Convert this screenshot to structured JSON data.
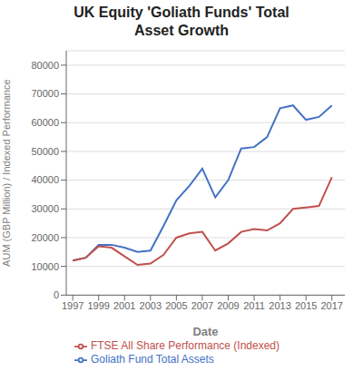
{
  "chart_data": {
    "type": "line",
    "title": "UK Equity 'Goliath Funds' Total\nAsset Growth",
    "xlabel": "Date",
    "ylabel": "AUM (GBP Million) / Indexed Performance",
    "x": [
      1997,
      1998,
      1999,
      2000,
      2001,
      2002,
      2003,
      2004,
      2005,
      2006,
      2007,
      2008,
      2009,
      2010,
      2011,
      2012,
      2013,
      2014,
      2015,
      2016,
      2017
    ],
    "series": [
      {
        "name": "Goliath Fund Total Assets",
        "color": "#4472C4",
        "values": [
          12000,
          13000,
          17500,
          17500,
          16500,
          15000,
          15500,
          24000,
          33000,
          38000,
          44000,
          34000,
          40000,
          51000,
          51500,
          55000,
          65000,
          66000,
          61000,
          62000,
          66000
        ]
      },
      {
        "name": "FTSE All Share Performance (Indexed)",
        "color": "#C0504D",
        "values": [
          12000,
          13000,
          17000,
          16500,
          13500,
          10500,
          11000,
          14000,
          20000,
          21500,
          22000,
          15500,
          18000,
          22000,
          23000,
          22500,
          25000,
          30000,
          30500,
          31000,
          41000
        ]
      }
    ],
    "xlim": [
      1996.5,
      2018
    ],
    "xticks": [
      1997,
      1999,
      2001,
      2003,
      2005,
      2007,
      2009,
      2011,
      2013,
      2015,
      2017
    ],
    "ylim": [
      0,
      85000
    ],
    "yticks": [
      0,
      10000,
      20000,
      30000,
      40000,
      50000,
      60000,
      70000,
      80000
    ],
    "grid": "y",
    "legend": "bottom"
  }
}
